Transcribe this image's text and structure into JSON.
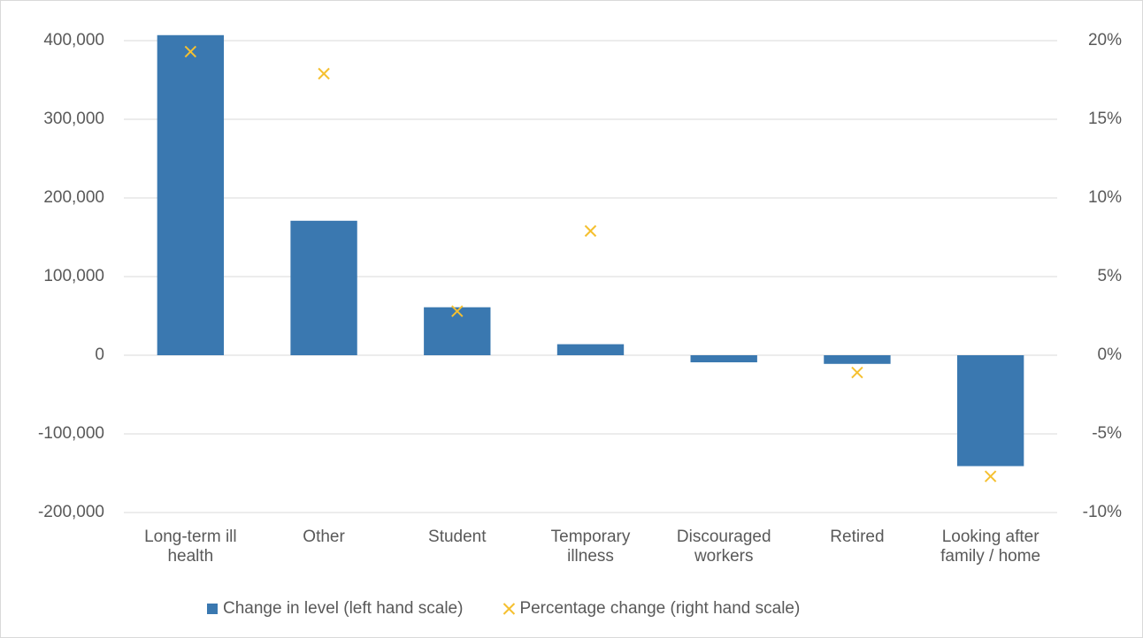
{
  "chart_data": {
    "type": "bar+scatter",
    "categories": [
      "Long-term ill\nhealth",
      "Other",
      "Student",
      "Temporary\nillness",
      "Discouraged\nworkers",
      "Retired",
      "Looking after\nfamily / home"
    ],
    "series": [
      {
        "name": "Change in level (left hand scale)",
        "type": "bar",
        "color": "#3a78b0",
        "axis": "y",
        "values": [
          407000,
          171000,
          61000,
          14000,
          -9000,
          -11000,
          -141000
        ]
      },
      {
        "name": "Percentage change (right hand scale)",
        "type": "scatter",
        "color": "#f5c030",
        "axis": "y2",
        "values": [
          19.3,
          17.9,
          2.8,
          7.9,
          null,
          -1.1,
          -7.7
        ]
      }
    ],
    "ylim": [
      -200000,
      400000
    ],
    "yticks": [
      {
        "value": -200000,
        "label": "-200,000"
      },
      {
        "value": -100000,
        "label": "-100,000"
      },
      0,
      {
        "value": 100000,
        "label": "100,000"
      },
      {
        "value": 200000,
        "label": "200,000"
      },
      {
        "value": 300000,
        "label": "300,000"
      },
      {
        "value": 400000,
        "label": "400,000"
      }
    ],
    "y2lim": [
      -10,
      20
    ],
    "y2ticks": [
      {
        "value": -10,
        "label": "-10%"
      },
      {
        "value": -5,
        "label": "-5%"
      },
      {
        "value": 0,
        "label": "0%"
      },
      {
        "value": 5,
        "label": "5%"
      },
      {
        "value": 10,
        "label": "10%"
      },
      {
        "value": 15,
        "label": "15%"
      },
      {
        "value": 20,
        "label": "20%"
      }
    ],
    "grid": true,
    "legend": "bottom"
  }
}
